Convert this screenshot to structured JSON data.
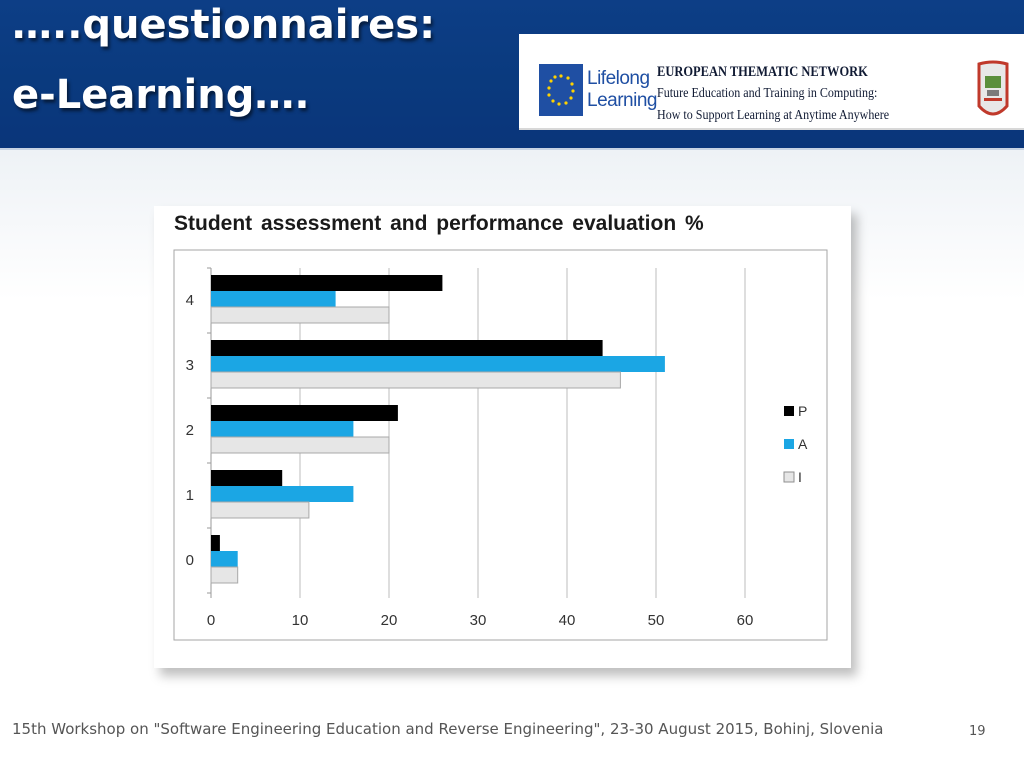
{
  "slide": {
    "title_line1": "…..questionnaires:",
    "title_line2": "e-Learning….",
    "footer": "15th Workshop on \"Software Engineering Education and Reverse Engineering\", 23-30 August 2015, Bohinj, Slovenia",
    "page_number": "19"
  },
  "banner": {
    "lifelong_line1": "Lifelong",
    "lifelong_line2": "Learning",
    "network_line1": "EUROPEAN THEMATIC NETWORK",
    "network_line2": "Future Education and Training in Computing:",
    "network_line3": "How to Support Learning at Anytime Anywhere",
    "eu_flag_icon": "eu-flag-icon",
    "right_logo_icon": "computer-emblem-icon"
  },
  "colors": {
    "header_blue": "#0b3a80",
    "series_P": "#000000",
    "series_A": "#1ba6e4",
    "series_I": "#e6e6e6"
  },
  "chart_data": {
    "type": "bar",
    "orientation": "horizontal",
    "title": "Student assessment  and performance  evaluation %",
    "categories": [
      "4",
      "3",
      "2",
      "1",
      "0"
    ],
    "series": [
      {
        "name": "P",
        "values": [
          26,
          44,
          21,
          8,
          1
        ]
      },
      {
        "name": "A",
        "values": [
          14,
          51,
          16,
          16,
          3
        ]
      },
      {
        "name": "I",
        "values": [
          20,
          46,
          20,
          11,
          3
        ]
      }
    ],
    "xticks": [
      "0",
      "10",
      "20",
      "30",
      "40",
      "50",
      "60"
    ],
    "xlim": [
      0,
      60
    ],
    "grid": "vertical",
    "legend_position": "right"
  }
}
